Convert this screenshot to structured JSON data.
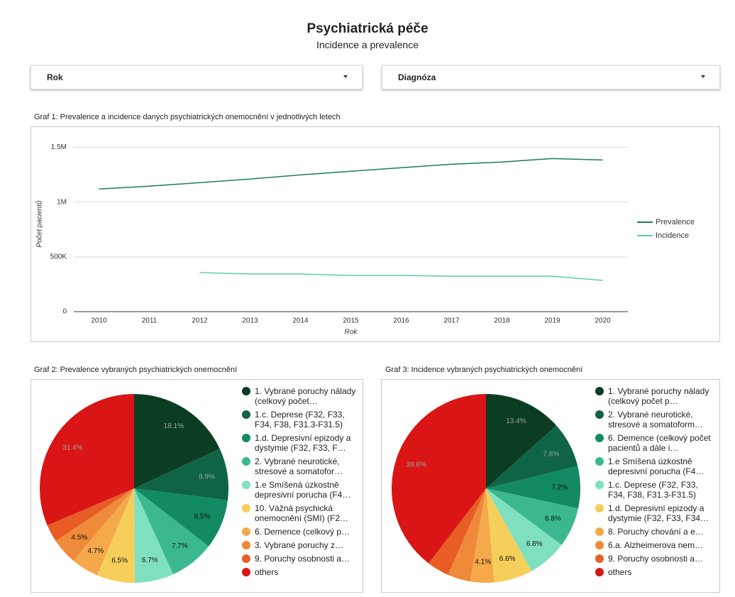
{
  "header": {
    "title": "Psychiatrická péče",
    "subtitle": "Incidence a prevalence"
  },
  "filters": [
    "Rok",
    "Diagnóza"
  ],
  "chart_data": [
    {
      "type": "line",
      "title": "Graf 1: Prevalence a  incidence daných psychiatrických onemocnění v jednotlivých letech",
      "x_label": "Rok",
      "y_label": "Počet pacientů",
      "categories": [
        "2010",
        "2011",
        "2012",
        "2013",
        "2014",
        "2015",
        "2016",
        "2017",
        "2018",
        "2019",
        "2020"
      ],
      "series": [
        {
          "name": "Prevalence",
          "color": "#1e7b5e",
          "values": [
            1119000,
            1145000,
            1177000,
            1210000,
            1248000,
            1281000,
            1313000,
            1345000,
            1365000,
            1397000,
            1384000
          ]
        },
        {
          "name": "Incidence",
          "color": "#5ccf9f",
          "values": [
            null,
            null,
            356000,
            343000,
            343000,
            330000,
            330000,
            323000,
            323000,
            323000,
            285000
          ]
        }
      ],
      "ylim": [
        0,
        1600000
      ],
      "yticks": [
        0,
        {
          "value": 500000,
          "label": "500K"
        },
        {
          "value": 1000000,
          "label": "1M"
        },
        {
          "value": 1500000,
          "label": "1.5M"
        }
      ],
      "grid": true,
      "legend": "right"
    },
    {
      "type": "pie",
      "title": "Graf 2: Prevalence vybraných psychiatrických onemocnění",
      "categories": [
        "1. Vybrané poruchy nálady (celkový počet…",
        "1.c. Deprese (F32, F33, F34, F38, F31.3-F31.5)",
        "1.d. Depresivní epizody a dystymie (F32, F33, F…",
        "2. Vybrané neurotické, stresové a somatofor…",
        "1.e Smíšená úzkostně depresivní porucha (F4…",
        "10. Vážná psychická onemocnění (SMI) (F2…",
        "6. Demence  (celkový p…",
        "3.  Vybrané poruchy z…",
        "9. Poruchy osobnosti a…",
        "others"
      ],
      "values": [
        18.1,
        8.9,
        8.5,
        7.7,
        6.7,
        6.5,
        4.7,
        4.5,
        3.0,
        31.4
      ],
      "value_labels": [
        "18.1%",
        "8.9%",
        "8.5%",
        "7.7%",
        "6.7%",
        "6.5%",
        "4.7%",
        "4.5%",
        null,
        "31.4%"
      ],
      "colors": [
        "#0b3d22",
        "#0f6445",
        "#128a63",
        "#3bb88f",
        "#7fe0c0",
        "#f5cf5a",
        "#f5a94b",
        "#ee8a3a",
        "#e85d26",
        "#d91515"
      ],
      "legend": "right"
    },
    {
      "type": "pie",
      "title": "Graf 3: Incidence vybraných psychiatrických onemocnění",
      "categories": [
        "1. Vybrané poruchy nálady (celkový počet p…",
        "2. Vybrané neurotické, stresové a somatoform…",
        "6. Demence  (celkový počet pacientů a dále i…",
        "1.e Smíšená úzkostně depresivní porucha (F4…",
        "1.c. Deprese (F32, F33, F34, F38, F31.3-F31.5)",
        "1.d. Depresivní epizody a dystymie (F32, F33, F34…",
        "8. Poruchy chování a e…",
        "6.a. Alzheimerova nem…",
        "9. Poruchy osobnosti a…",
        "others"
      ],
      "values": [
        13.4,
        7.8,
        7.2,
        6.8,
        6.8,
        6.6,
        4.1,
        3.9,
        3.8,
        39.6
      ],
      "value_labels": [
        "13.4%",
        "7.8%",
        "7.2%",
        "6.8%",
        "6.8%",
        "6.6%",
        "4.1%",
        null,
        null,
        "39.6%"
      ],
      "colors": [
        "#0b3d22",
        "#0f6445",
        "#128a63",
        "#3bb88f",
        "#7fe0c0",
        "#f5cf5a",
        "#f5a94b",
        "#ee8a3a",
        "#e85d26",
        "#d91515"
      ],
      "legend": "right"
    }
  ]
}
